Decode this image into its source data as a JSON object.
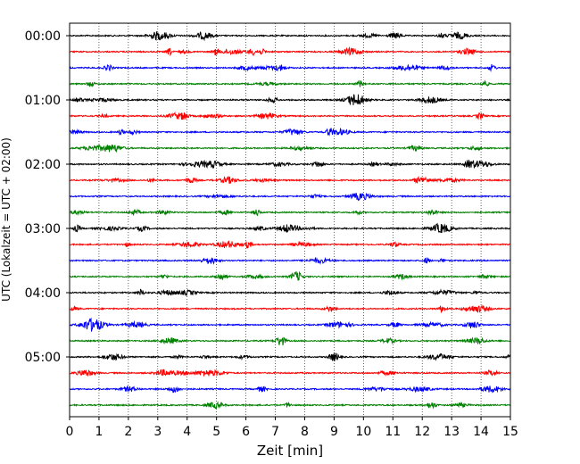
{
  "chart_data": {
    "type": "line",
    "title": "",
    "xlabel": "Zeit  [min]",
    "ylabel": "UTC (Lokalzeit = UTC + 02:00)",
    "xlim": [
      0,
      15
    ],
    "x_ticks": [
      "0",
      "1",
      "2",
      "3",
      "4",
      "5",
      "6",
      "7",
      "8",
      "9",
      "10",
      "11",
      "12",
      "13",
      "14",
      "15"
    ],
    "y_tick_labels": [
      "00:00",
      "01:00",
      "02:00",
      "03:00",
      "04:00",
      "05:00"
    ],
    "trace_interval_min": 15,
    "grid": "vertical dotted lines at each minute",
    "color_cycle": [
      "#000000",
      "#ff0000",
      "#0000ff",
      "#008000"
    ],
    "series": [
      {
        "start": "00:00",
        "color": "#000000"
      },
      {
        "start": "00:15",
        "color": "#ff0000"
      },
      {
        "start": "00:30",
        "color": "#0000ff"
      },
      {
        "start": "00:45",
        "color": "#008000"
      },
      {
        "start": "01:00",
        "color": "#000000"
      },
      {
        "start": "01:15",
        "color": "#ff0000"
      },
      {
        "start": "01:30",
        "color": "#0000ff"
      },
      {
        "start": "01:45",
        "color": "#008000"
      },
      {
        "start": "02:00",
        "color": "#000000"
      },
      {
        "start": "02:15",
        "color": "#ff0000"
      },
      {
        "start": "02:30",
        "color": "#0000ff"
      },
      {
        "start": "02:45",
        "color": "#008000"
      },
      {
        "start": "03:00",
        "color": "#000000"
      },
      {
        "start": "03:15",
        "color": "#ff0000"
      },
      {
        "start": "03:30",
        "color": "#0000ff"
      },
      {
        "start": "03:45",
        "color": "#008000"
      },
      {
        "start": "04:00",
        "color": "#000000"
      },
      {
        "start": "04:15",
        "color": "#ff0000"
      },
      {
        "start": "04:30",
        "color": "#0000ff"
      },
      {
        "start": "04:45",
        "color": "#008000"
      },
      {
        "start": "05:00",
        "color": "#000000"
      },
      {
        "start": "05:15",
        "color": "#ff0000"
      },
      {
        "start": "05:30",
        "color": "#0000ff"
      },
      {
        "start": "05:45",
        "color": "#008000"
      }
    ]
  }
}
